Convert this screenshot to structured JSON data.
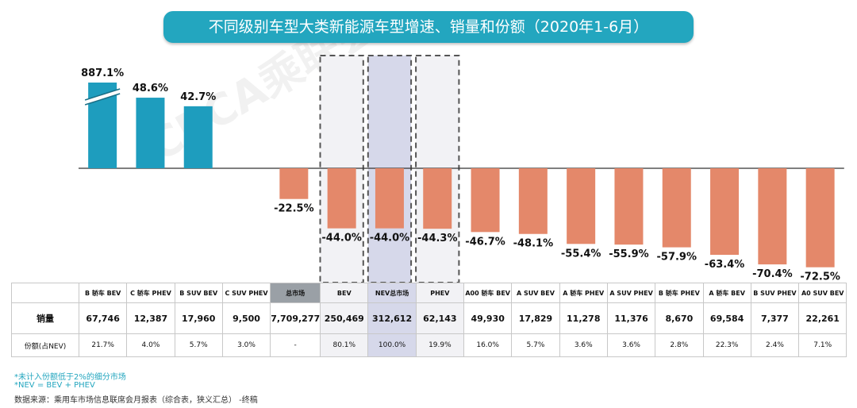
{
  "title": "不同级别车型大类新能源车型增速、销量和份额（2020年1-6月）",
  "chart_data": {
    "type": "bar",
    "categories": [
      "B 轿车 BEV",
      "C 轿车 PHEV",
      "B SUV BEV",
      "C SUV PHEV",
      "总市场",
      "BEV",
      "NEV总市场",
      "PHEV",
      "A00 轿车 BEV",
      "A SUV BEV",
      "A 轿车 PHEV",
      "A SUV PHEV",
      "B 轿车 PHEV",
      "A 轿车 BEV",
      "B SUV PHEV",
      "A0 SUV BEV"
    ],
    "values": [
      887.1,
      48.6,
      42.7,
      null,
      -22.5,
      -44.0,
      -44.0,
      -44.3,
      -46.7,
      -48.1,
      -55.4,
      -55.9,
      -57.9,
      -63.4,
      -70.4,
      -72.5
    ],
    "value_labels": [
      "887.1%",
      "48.6%",
      "42.7%",
      "",
      "-22.5%",
      "-44.0%",
      "-44.0%",
      "-44.3%",
      "-46.7%",
      "-48.1%",
      "-55.4%",
      "-55.9%",
      "-57.9%",
      "-63.4%",
      "-70.4%",
      "-72.5%"
    ],
    "axis_break_on_first_bar": true,
    "colors": {
      "positive": "#1e9dbe",
      "negative": "#e4886a",
      "title_bg": "#23a6bf",
      "dashed_box": "#555555",
      "nev_highlight": "#d6d8ea"
    },
    "highlighted_categories": [
      "BEV",
      "NEV总市场",
      "PHEV"
    ],
    "table": {
      "row_labels": [
        "销量",
        "份额(占NEV)"
      ],
      "sales": [
        "67,746",
        "12,387",
        "17,960",
        "9,500",
        "7,709,277",
        "250,469",
        "312,612",
        "62,143",
        "49,930",
        "17,829",
        "11,278",
        "11,376",
        "8,670",
        "69,584",
        "7,377",
        "22,261"
      ],
      "share": [
        "21.7%",
        "4.0%",
        "5.7%",
        "3.0%",
        "-",
        "80.1%",
        "100.0%",
        "19.9%",
        "16.0%",
        "5.7%",
        "3.6%",
        "3.6%",
        "2.8%",
        "22.3%",
        "2.4%",
        "7.1%"
      ]
    }
  },
  "notes": {
    "note1": "*未计入份额低于2%的细分市场",
    "note2": "*NEV = BEV + PHEV",
    "note3": "数据来源：乘用车市场信息联席会月报表（综合表，狭义汇总）    -终稿"
  },
  "watermark": "CPCA乘联会"
}
